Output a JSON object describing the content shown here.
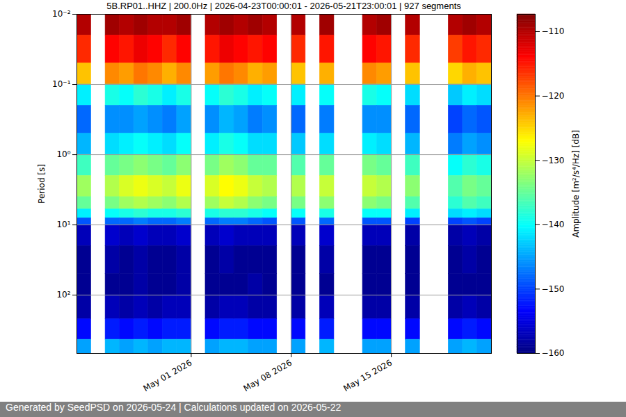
{
  "chart_data": {
    "type": "heatmap",
    "title": "5B.RP01..HHZ | 200.0Hz | 2026-04-23T00:00:01 - 2026-05-21T23:00:01 | 927 segments",
    "footer": "Generated by SeedPSD on 2026-05-24 | Calculations updated on 2026-05-22",
    "ylabel": "Period [s]",
    "log": "y",
    "grid": true,
    "color": "jet",
    "xlim": [
      "2026-04-23",
      "2026-05-22"
    ],
    "xticks": [
      {
        "value": "2026-05-01",
        "label": "May 01 2026"
      },
      {
        "value": "2026-05-08",
        "label": "May 08 2026"
      },
      {
        "value": "2026-05-15",
        "label": "May 15 2026"
      }
    ],
    "ylim": [
      0.01,
      676
    ],
    "yticks": [
      {
        "value": 0.01,
        "label": "10⁻²"
      },
      {
        "value": 0.1,
        "label": "10⁻¹"
      },
      {
        "value": 1,
        "label": "10⁰"
      },
      {
        "value": 10,
        "label": "10¹"
      },
      {
        "value": 100,
        "label": "10²"
      }
    ],
    "x_edges": [
      "2026-04-23",
      "2026-04-24",
      "2026-04-25",
      "2026-04-26",
      "2026-04-27",
      "2026-04-28",
      "2026-04-29",
      "2026-04-30",
      "2026-05-01",
      "2026-05-02",
      "2026-05-03",
      "2026-05-04",
      "2026-05-05",
      "2026-05-06",
      "2026-05-07",
      "2026-05-08",
      "2026-05-09",
      "2026-05-10",
      "2026-05-11",
      "2026-05-12",
      "2026-05-13",
      "2026-05-14",
      "2026-05-15",
      "2026-05-16",
      "2026-05-17",
      "2026-05-18",
      "2026-05-19",
      "2026-05-20",
      "2026-05-21",
      "2026-05-22"
    ],
    "y_edges": [
      0.01,
      0.02,
      0.05,
      0.1,
      0.2,
      0.5,
      1,
      2,
      4,
      6,
      8,
      10,
      20,
      50,
      100,
      220,
      430,
      676
    ],
    "values": [
      [
        -110,
        null,
        -109,
        -110,
        -109,
        -110,
        -110,
        -109,
        null,
        -110,
        -109,
        -110,
        -109,
        -110,
        null,
        -110,
        null,
        -109,
        null,
        null,
        -110,
        -109,
        null,
        -110,
        null,
        null,
        -110,
        -109,
        -110
      ],
      [
        -116,
        null,
        -114,
        -115,
        -113,
        -114,
        -116,
        -114,
        null,
        -115,
        -113,
        -114,
        -115,
        -114,
        null,
        -116,
        null,
        -115,
        null,
        null,
        -114,
        -115,
        null,
        -116,
        null,
        null,
        -117,
        -115,
        -116
      ],
      [
        -124,
        null,
        -121,
        -122,
        -120,
        -121,
        -123,
        -121,
        null,
        -122,
        -120,
        -121,
        -123,
        -122,
        null,
        -124,
        null,
        -123,
        null,
        null,
        -121,
        -122,
        null,
        -124,
        null,
        null,
        -125,
        -123,
        -124
      ],
      [
        -141,
        null,
        -139,
        -140,
        -138,
        -139,
        -141,
        -139,
        null,
        -140,
        -138,
        -139,
        -141,
        -140,
        null,
        -141,
        null,
        -140,
        null,
        null,
        -139,
        -140,
        null,
        -142,
        null,
        null,
        -143,
        -141,
        -142
      ],
      [
        -148,
        null,
        -146,
        -146,
        -145,
        -146,
        -147,
        -145,
        null,
        -146,
        -144,
        -145,
        -147,
        -146,
        null,
        -148,
        null,
        -147,
        null,
        null,
        -146,
        -146,
        null,
        -148,
        null,
        null,
        -150,
        -148,
        -149
      ],
      [
        -144,
        null,
        -142,
        -141,
        -140,
        -141,
        -142,
        -140,
        null,
        -141,
        -139,
        -140,
        -142,
        -142,
        null,
        -143,
        null,
        -142,
        null,
        null,
        -141,
        -142,
        null,
        -144,
        null,
        null,
        -147,
        -145,
        -146
      ],
      [
        -137,
        null,
        -135,
        -134,
        -133,
        -134,
        -135,
        -133,
        null,
        -134,
        -132,
        -133,
        -135,
        -135,
        null,
        -136,
        null,
        -135,
        null,
        null,
        -134,
        -135,
        null,
        -137,
        null,
        null,
        -140,
        -138,
        -139
      ],
      [
        -132,
        null,
        -131,
        -129,
        -128,
        -129,
        -130,
        -128,
        null,
        -129,
        -127,
        -128,
        -130,
        -131,
        null,
        -131,
        null,
        -130,
        null,
        null,
        -130,
        -131,
        null,
        -133,
        null,
        null,
        -136,
        -134,
        -135
      ],
      [
        -135,
        null,
        -134,
        -132,
        -131,
        -132,
        -133,
        -131,
        null,
        -132,
        -130,
        -131,
        -133,
        -134,
        null,
        -134,
        null,
        -133,
        null,
        null,
        -133,
        -134,
        null,
        -136,
        null,
        null,
        -138,
        -136,
        -137
      ],
      [
        -141,
        null,
        -140,
        -139,
        -138,
        -139,
        -139,
        -138,
        null,
        -139,
        -138,
        -138,
        -139,
        -140,
        null,
        -140,
        null,
        -139,
        null,
        null,
        -140,
        -140,
        null,
        -141,
        null,
        null,
        -142,
        -141,
        -142
      ],
      [
        -149,
        null,
        -148,
        -148,
        -147,
        -148,
        -148,
        -147,
        null,
        -148,
        -147,
        -147,
        -148,
        -149,
        null,
        -149,
        null,
        -148,
        null,
        null,
        -149,
        -149,
        null,
        -150,
        null,
        null,
        -150,
        -149,
        -150
      ],
      [
        -157,
        null,
        -156,
        -157,
        -156,
        -157,
        -157,
        -156,
        null,
        -157,
        -156,
        -157,
        -157,
        -157,
        null,
        -157,
        null,
        -156,
        null,
        null,
        -157,
        -157,
        null,
        -158,
        null,
        null,
        -158,
        -157,
        -158
      ],
      [
        -159,
        null,
        -158,
        -159,
        -158,
        -159,
        -159,
        -158,
        null,
        -159,
        -158,
        -159,
        -159,
        -159,
        null,
        -159,
        null,
        -158,
        null,
        null,
        -159,
        -159,
        null,
        -159,
        null,
        null,
        -159,
        -158,
        -159
      ],
      [
        -159,
        null,
        -159,
        -159,
        -158,
        -159,
        -159,
        -158,
        null,
        -159,
        -159,
        -159,
        -158,
        -159,
        null,
        -159,
        null,
        -159,
        null,
        null,
        -159,
        -159,
        null,
        -159,
        null,
        null,
        -159,
        -159,
        -159
      ],
      [
        -158,
        null,
        -157,
        -158,
        -157,
        -158,
        -157,
        -157,
        null,
        -158,
        -157,
        -157,
        -158,
        -158,
        null,
        -158,
        null,
        -157,
        null,
        null,
        -158,
        -158,
        null,
        -158,
        null,
        null,
        -158,
        -157,
        -158
      ],
      [
        -153,
        null,
        -152,
        -153,
        -152,
        -153,
        -152,
        -152,
        null,
        -153,
        -152,
        -152,
        -153,
        -153,
        null,
        -153,
        null,
        -152,
        null,
        null,
        -153,
        -153,
        null,
        -153,
        null,
        null,
        -153,
        -152,
        -153
      ],
      [
        -145,
        null,
        -144,
        -145,
        -144,
        -145,
        -144,
        -144,
        null,
        -145,
        -144,
        -144,
        -145,
        -145,
        null,
        -145,
        null,
        -144,
        null,
        null,
        -145,
        -145,
        null,
        -145,
        null,
        null,
        -145,
        -144,
        -145
      ]
    ],
    "colorbar": {
      "label": "Amplitude [m²/s⁴/Hz] [dB]",
      "lim": [
        -160,
        -107.3
      ],
      "ticks": [
        -110,
        -120,
        -130,
        -140,
        -150,
        -160
      ]
    }
  }
}
